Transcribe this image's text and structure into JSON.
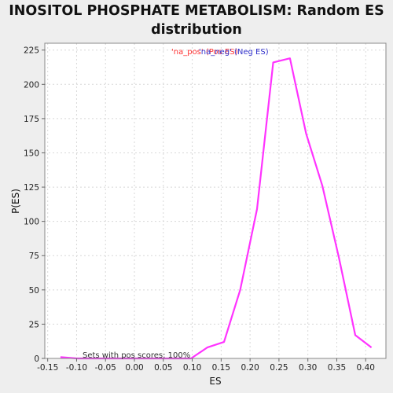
{
  "chart_data": {
    "type": "line",
    "title_line1": "INOSITOL PHOSPHATE METABOLISM: Random ES",
    "title_line2": "distribution",
    "xlabel": "ES",
    "ylabel": "P(ES)",
    "xlim": [
      -0.155,
      0.435
    ],
    "ylim": [
      0,
      230
    ],
    "x_ticks": [
      "-0.15",
      "-0.10",
      "-0.05",
      "0.00",
      "0.05",
      "0.10",
      "0.15",
      "0.20",
      "0.25",
      "0.30",
      "0.35",
      "0.40"
    ],
    "x_tick_values": [
      -0.15,
      -0.1,
      -0.05,
      0.0,
      0.05,
      0.1,
      0.15,
      0.2,
      0.25,
      0.3,
      0.35,
      0.4
    ],
    "y_ticks": [
      "0",
      "25",
      "50",
      "75",
      "100",
      "125",
      "150",
      "175",
      "200",
      "225"
    ],
    "y_tick_values": [
      0,
      25,
      50,
      75,
      100,
      125,
      150,
      175,
      200,
      225
    ],
    "grid": true,
    "legend": [
      {
        "label": "'na_pos' (Pos ES)",
        "color": "#ff3333"
      },
      {
        "label": "'na_neg' (Neg ES)",
        "color": "#3333cc"
      }
    ],
    "annotation": "Sets with pos scores: 100%",
    "series": [
      {
        "color": "#ff33ff",
        "x": [
          -0.128,
          -0.1,
          -0.072,
          -0.043,
          -0.015,
          0.013,
          0.041,
          0.07,
          0.098,
          0.126,
          0.155,
          0.183,
          0.212,
          0.24,
          0.269,
          0.297,
          0.325,
          0.354,
          0.382,
          0.41
        ],
        "y": [
          1,
          0,
          0,
          0,
          0,
          0,
          0,
          0,
          0,
          8,
          12,
          50,
          109,
          216,
          219,
          164,
          126,
          73,
          17,
          8
        ]
      }
    ]
  }
}
